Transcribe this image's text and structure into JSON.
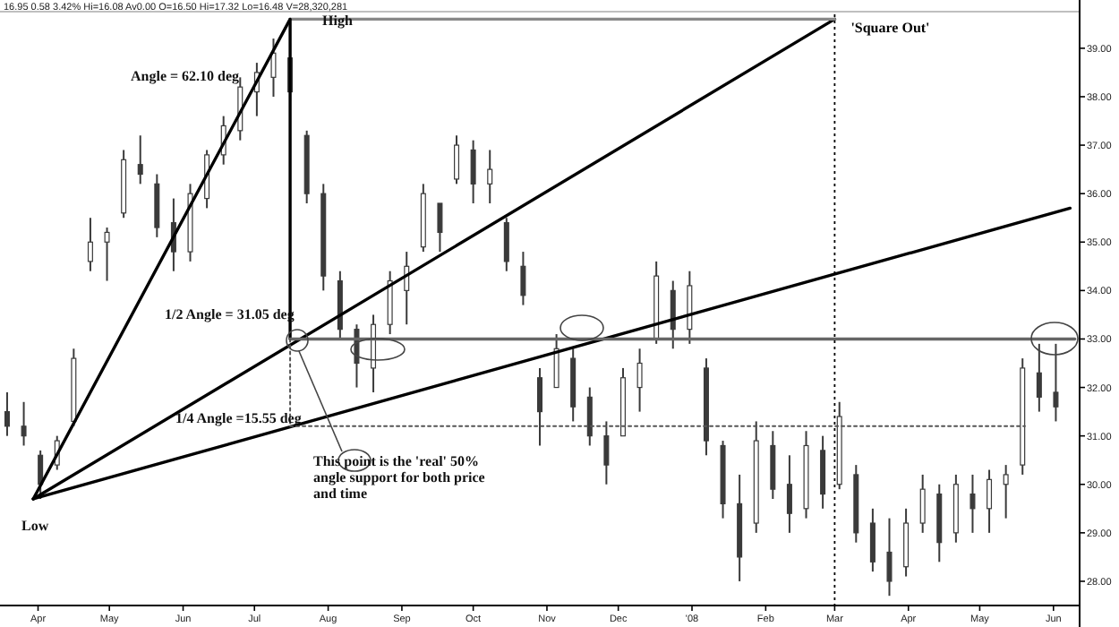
{
  "chart_data": {
    "type": "candlestick",
    "color": "#3a3a3a",
    "annotations": [
      "16.95 0.58 3.42% Hi=16.08 Av0.00 O=16.50 Hi=17.32 Lo=16.48 V=28,320,281",
      "High",
      "Low",
      "Angle = 62.10 deg",
      "1/2 Angle = 31.05 deg",
      "1/4 Angle =15.55 deg",
      "This point is the 'real' 50% angle support for both price and time"
    ],
    "x": [
      "2007-03-19",
      "2007-03-26",
      "2007-04-02",
      "2007-04-09",
      "2007-04-16",
      "2007-04-23",
      "2007-04-30",
      "2007-05-07",
      "2007-05-14",
      "2007-05-21",
      "2007-05-28",
      "2007-06-04",
      "2007-06-11",
      "2007-06-18",
      "2007-06-25",
      "2007-07-02",
      "2007-07-09",
      "2007-07-16",
      "2007-07-23",
      "2007-07-30",
      "2007-08-06",
      "2007-08-13",
      "2007-08-20",
      "2007-08-27",
      "2007-09-03",
      "2007-09-10",
      "2007-09-17",
      "2007-09-24",
      "2007-10-01",
      "2007-10-08",
      "2007-10-15",
      "2007-10-22",
      "2007-10-29",
      "2007-11-05",
      "2007-11-12",
      "2007-11-19",
      "2007-11-26",
      "2007-12-03",
      "2007-12-10",
      "2007-12-17",
      "2007-12-24",
      "2007-12-31",
      "2008-01-07",
      "2008-01-14",
      "2008-01-21",
      "2008-01-28",
      "2008-02-04",
      "2008-02-11",
      "2008-02-18",
      "2008-02-25",
      "2008-03-03",
      "2008-03-10",
      "2008-03-17",
      "2008-03-24",
      "2008-03-31",
      "2008-04-07",
      "2008-04-14",
      "2008-04-21",
      "2008-04-28",
      "2008-05-05",
      "2008-05-12",
      "2008-05-19",
      "2008-05-26",
      "2008-06-02"
    ],
    "ohlc": [
      [
        31.5,
        31.9,
        31.0,
        31.2
      ],
      [
        31.2,
        31.7,
        30.8,
        31.0
      ],
      [
        30.6,
        30.7,
        29.7,
        30.0
      ],
      [
        30.4,
        31.0,
        30.3,
        30.9
      ],
      [
        31.3,
        32.8,
        31.2,
        32.6
      ],
      [
        34.6,
        35.5,
        34.4,
        35.0
      ],
      [
        35.0,
        35.3,
        34.2,
        35.2
      ],
      [
        35.6,
        36.9,
        35.5,
        36.7
      ],
      [
        36.6,
        37.2,
        36.2,
        36.4
      ],
      [
        36.2,
        36.4,
        35.1,
        35.3
      ],
      [
        35.4,
        35.9,
        34.4,
        34.8
      ],
      [
        34.8,
        36.2,
        34.6,
        36.0
      ],
      [
        35.9,
        36.9,
        35.7,
        36.8
      ],
      [
        36.8,
        37.6,
        36.6,
        37.4
      ],
      [
        37.3,
        38.4,
        37.1,
        38.2
      ],
      [
        38.1,
        38.7,
        37.6,
        38.5
      ],
      [
        38.4,
        39.2,
        38.0,
        38.9
      ],
      [
        38.8,
        39.1,
        37.9,
        38.1
      ],
      [
        37.2,
        37.3,
        35.8,
        36.0
      ],
      [
        36.0,
        36.2,
        34.0,
        34.3
      ],
      [
        34.2,
        34.4,
        33.0,
        33.2
      ],
      [
        33.2,
        33.3,
        32.0,
        32.5
      ],
      [
        32.4,
        33.5,
        31.9,
        33.3
      ],
      [
        33.3,
        34.4,
        33.1,
        34.2
      ],
      [
        34.0,
        34.8,
        33.3,
        34.5
      ],
      [
        34.9,
        36.2,
        34.8,
        36.0
      ],
      [
        35.8,
        35.8,
        34.8,
        35.2
      ],
      [
        36.3,
        37.2,
        36.2,
        37.0
      ],
      [
        36.9,
        37.1,
        35.8,
        36.2
      ],
      [
        36.2,
        36.9,
        35.8,
        36.5
      ],
      [
        35.4,
        35.5,
        34.4,
        34.6
      ],
      [
        34.5,
        34.8,
        33.7,
        33.9
      ],
      [
        32.2,
        32.4,
        30.8,
        31.5
      ],
      [
        32.0,
        33.1,
        32.0,
        32.8
      ],
      [
        32.6,
        32.8,
        31.3,
        31.6
      ],
      [
        31.8,
        32.0,
        30.8,
        31.0
      ],
      [
        31.0,
        31.3,
        30.0,
        30.4
      ],
      [
        31.0,
        32.4,
        31.0,
        32.2
      ],
      [
        32.0,
        32.8,
        31.5,
        32.5
      ],
      [
        33.0,
        34.6,
        32.9,
        34.3
      ],
      [
        34.0,
        34.2,
        32.8,
        33.2
      ],
      [
        33.2,
        34.4,
        32.9,
        34.1
      ],
      [
        32.4,
        32.6,
        30.6,
        30.9
      ],
      [
        30.8,
        30.9,
        29.3,
        29.6
      ],
      [
        29.6,
        30.2,
        28.0,
        28.5
      ],
      [
        29.2,
        31.3,
        29.0,
        30.9
      ],
      [
        30.8,
        31.1,
        29.7,
        29.9
      ],
      [
        30.0,
        30.6,
        29.0,
        29.4
      ],
      [
        29.5,
        31.1,
        29.3,
        30.8
      ],
      [
        30.7,
        31.0,
        29.5,
        29.8
      ],
      [
        30.0,
        31.7,
        29.9,
        31.4
      ],
      [
        30.2,
        30.4,
        28.8,
        29.0
      ],
      [
        29.2,
        29.5,
        28.2,
        28.4
      ],
      [
        28.6,
        29.3,
        27.7,
        28.0
      ],
      [
        28.3,
        29.5,
        28.1,
        29.2
      ],
      [
        29.2,
        30.2,
        29.0,
        29.9
      ],
      [
        29.8,
        30.0,
        28.4,
        28.8
      ],
      [
        29.0,
        30.2,
        28.8,
        30.0
      ],
      [
        29.8,
        30.2,
        29.0,
        29.5
      ],
      [
        29.5,
        30.3,
        29.0,
        30.1
      ],
      [
        30.0,
        30.4,
        29.3,
        30.2
      ],
      [
        30.4,
        32.6,
        30.2,
        32.4
      ],
      [
        32.3,
        32.9,
        31.5,
        31.8
      ],
      [
        31.9,
        32.9,
        31.3,
        31.6
      ]
    ],
    "series": [
      {
        "type": "line",
        "color": "#000000",
        "line_style": "solid",
        "x": [
          "2007-03-30",
          "2007-07-16"
        ],
        "values": [
          29.7,
          39.6
        ]
      },
      {
        "type": "line",
        "color": "#000000",
        "line_style": "solid",
        "x": [
          "2007-03-30",
          "2008-03-01"
        ],
        "values": [
          29.7,
          39.6
        ]
      },
      {
        "type": "line",
        "color": "#000000",
        "line_style": "solid",
        "x": [
          "2007-03-30",
          "2008-06-08"
        ],
        "values": [
          29.7,
          35.7
        ]
      },
      {
        "type": "line",
        "color": "#888888",
        "line_style": "solid",
        "x": [
          "2007-07-16",
          "2008-03-01"
        ],
        "values": [
          39.6,
          39.6
        ]
      },
      {
        "type": "line",
        "color": "#000000",
        "line_style": "solid",
        "x": [
          "2007-07-16",
          "2007-07-16"
        ],
        "values": [
          39.6,
          33.0
        ]
      },
      {
        "type": "line",
        "color": "#666666",
        "line_style": "solid",
        "x": [
          "2007-07-16",
          "2008-06-10"
        ],
        "values": [
          33.0,
          33.0
        ]
      },
      {
        "type": "line",
        "color": "#555555",
        "line_style": "dotted",
        "x": [
          "2007-07-16",
          "2008-05-20"
        ],
        "values": [
          31.2,
          31.2
        ]
      },
      {
        "type": "line",
        "color": "#555555",
        "line_style": "dotted",
        "x": [
          "2007-07-16",
          "2007-07-16"
        ],
        "values": [
          33.0,
          31.2
        ]
      }
    ],
    "ref_lines": [
      {
        "axis": "x",
        "value": "2008-03-01",
        "label": "'Square Out'",
        "color": "#000000",
        "line_style": "dotted"
      }
    ],
    "xlim": [
      "2007-03-16",
      "2008-06-12"
    ],
    "xticks": [
      {
        "value": "2007-04-01",
        "label": "Apr"
      },
      {
        "value": "2007-05-01",
        "label": "May"
      },
      {
        "value": "2007-06-01",
        "label": "Jun"
      },
      {
        "value": "2007-07-01",
        "label": "Jul"
      },
      {
        "value": "2007-08-01",
        "label": "Aug"
      },
      {
        "value": "2007-09-01",
        "label": "Sep"
      },
      {
        "value": "2007-10-01",
        "label": "Oct"
      },
      {
        "value": "2007-11-01",
        "label": "Nov"
      },
      {
        "value": "2007-12-01",
        "label": "Dec"
      },
      {
        "value": "2008-01-01",
        "label": "'08"
      },
      {
        "value": "2008-02-01",
        "label": "Feb"
      },
      {
        "value": "2008-03-01",
        "label": "Mar"
      },
      {
        "value": "2008-04-01",
        "label": "Apr"
      },
      {
        "value": "2008-05-01",
        "label": "May"
      },
      {
        "value": "2008-06-01",
        "label": "Jun"
      }
    ],
    "ylim": [
      27.5,
      39.7
    ],
    "yticks": [
      {
        "value": 28,
        "label": "28.00"
      },
      {
        "value": 29,
        "label": "29.00"
      },
      {
        "value": 30,
        "label": "30.00"
      },
      {
        "value": 31,
        "label": "31.00"
      },
      {
        "value": 32,
        "label": "32.00"
      },
      {
        "value": 33,
        "label": "33.00"
      },
      {
        "value": 34,
        "label": "34.00"
      },
      {
        "value": 35,
        "label": "35.00"
      },
      {
        "value": 36,
        "label": "36.00"
      },
      {
        "value": 37,
        "label": "37.00"
      },
      {
        "value": 38,
        "label": "38.00"
      },
      {
        "value": 39,
        "label": "39.00"
      }
    ]
  }
}
